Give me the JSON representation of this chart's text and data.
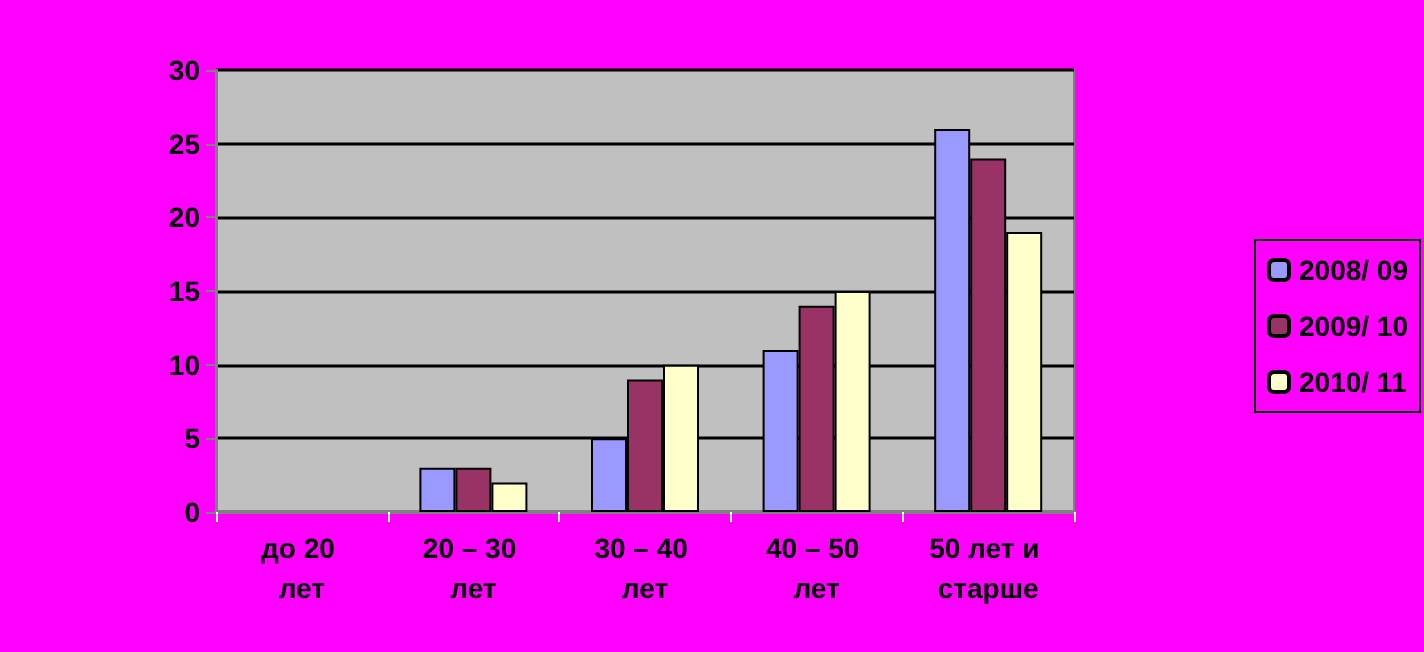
{
  "chart_data": {
    "type": "bar",
    "categories": [
      "до 20 лет",
      "20 – 30 лет",
      "30 – 40 лет",
      "40 – 50 лет",
      "50 лет и старше"
    ],
    "series": [
      {
        "name": "2008/ 09",
        "color": "#9999ff",
        "values": [
          0,
          3,
          5,
          11,
          26
        ]
      },
      {
        "name": "2009/ 10",
        "color": "#993366",
        "values": [
          0,
          3,
          9,
          14,
          24
        ]
      },
      {
        "name": "2010/ 11",
        "color": "#ffffcc",
        "values": [
          0,
          2,
          10,
          15,
          19
        ]
      }
    ],
    "ylim": [
      0,
      30
    ],
    "yticks": [
      0,
      5,
      10,
      15,
      20,
      25,
      30
    ],
    "grid": "y",
    "legend": "right"
  }
}
